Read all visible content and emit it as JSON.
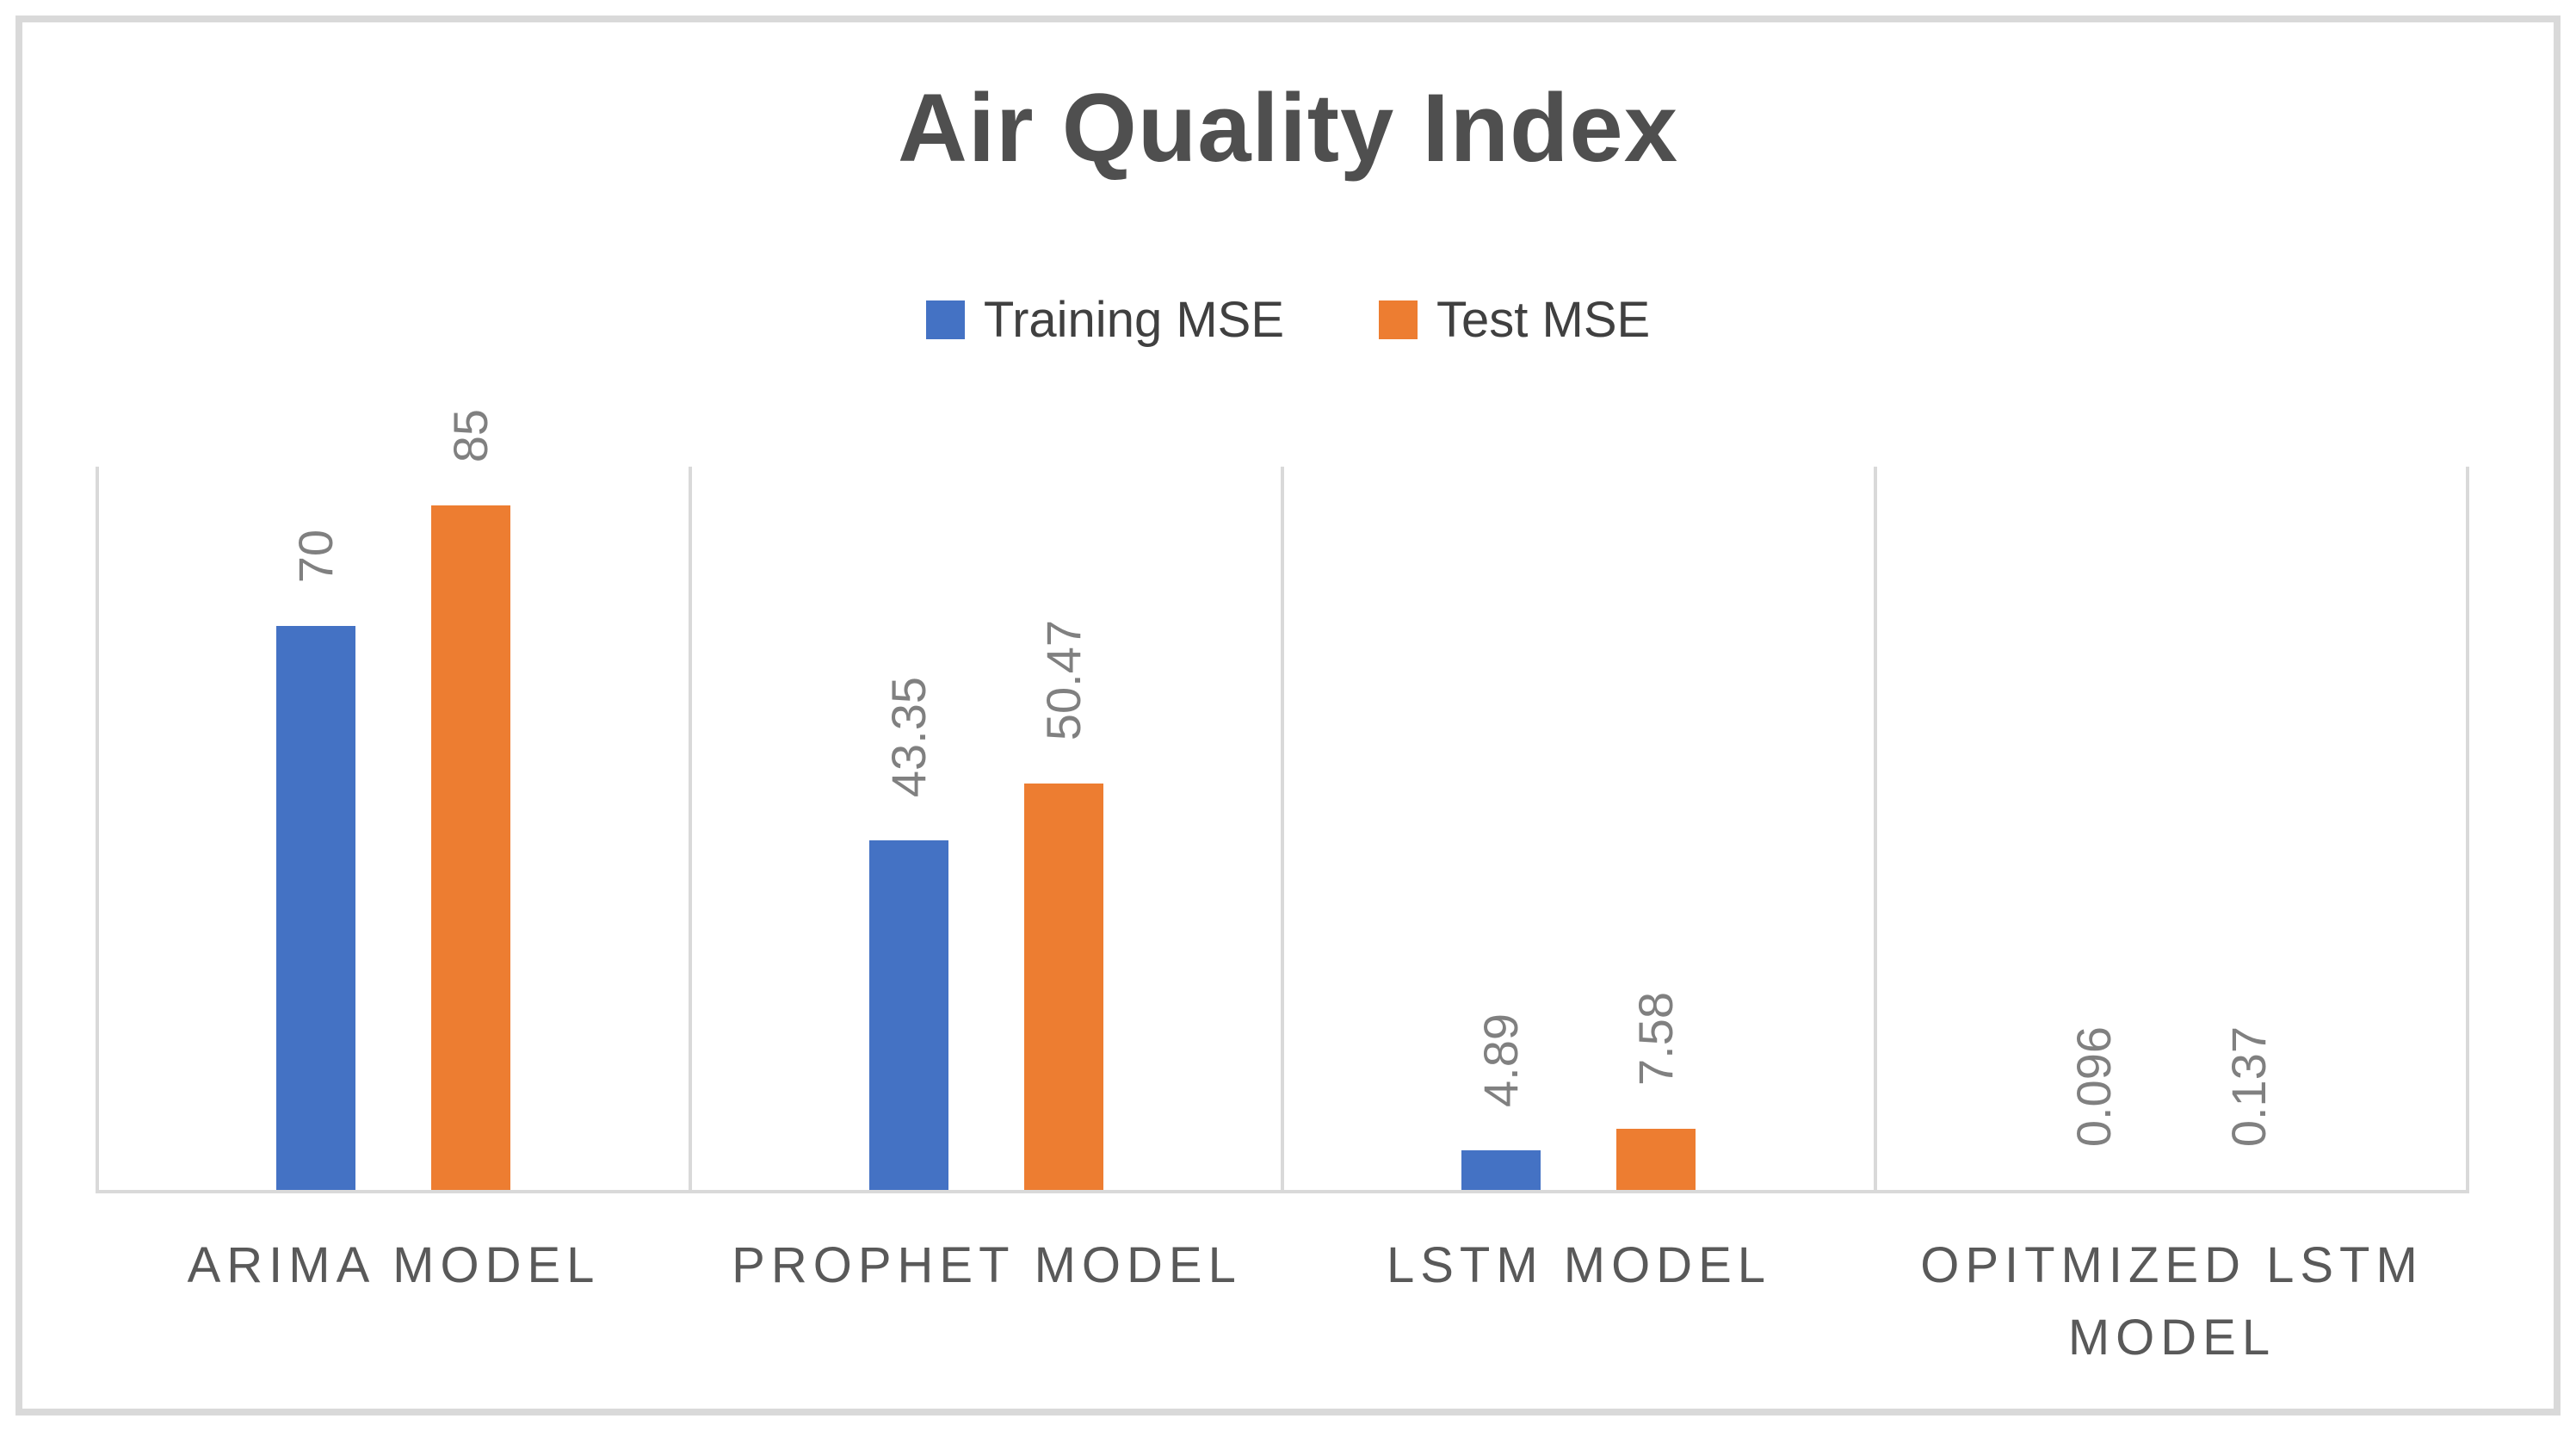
{
  "title": "Air Quality Index",
  "legend": {
    "items": [
      {
        "label": "Training MSE",
        "color": "#4472C4"
      },
      {
        "label": "Test MSE",
        "color": "#ED7D31"
      }
    ]
  },
  "chart_data": {
    "type": "bar",
    "title": "Air Quality Index",
    "categories": [
      "ARIMA MODEL",
      "PROPHET MODEL",
      "LSTM MODEL",
      "OPITMIZED LSTM MODEL"
    ],
    "series": [
      {
        "name": "Training MSE",
        "color": "#4472C4",
        "values": [
          70,
          43.35,
          4.89,
          0.096
        ],
        "labels": [
          "70",
          "43.35",
          "4.89",
          "0.096"
        ]
      },
      {
        "name": "Test MSE",
        "color": "#ED7D31",
        "values": [
          85,
          50.47,
          7.58,
          0.137
        ],
        "labels": [
          "85",
          "50.47",
          "7.58",
          "0.137"
        ]
      }
    ],
    "ylim": [
      0,
      90
    ],
    "y_axis_labels_visible": false,
    "grid": "vertical-category-separators",
    "legend_position": "top-center",
    "data_label_rotation_deg": -90
  },
  "colors": {
    "background": "#FFFFFF",
    "frame_border": "#D9D9D9",
    "gridline": "#D9D9D9",
    "title_text": "#4F4F4F",
    "legend_text": "#404040",
    "category_text": "#595959",
    "data_label_text": "#808080",
    "series_training": "#4472C4",
    "series_test": "#ED7D31"
  }
}
